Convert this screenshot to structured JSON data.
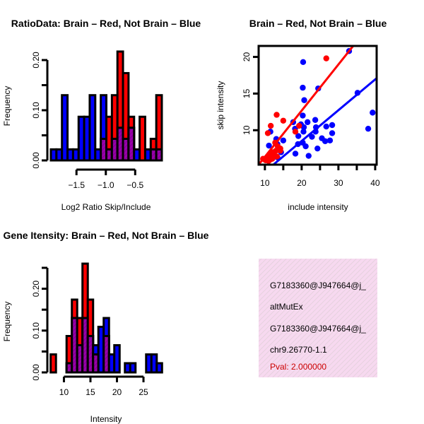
{
  "chart_data": [
    {
      "type": "bar",
      "title": "RatioData: Brain – Red, Not Brain – Blue",
      "xlabel": "Log2 Ratio Skip/Include",
      "ylabel": "Frequency",
      "x_start": -1.936,
      "bin_width": 0.0945,
      "xlim": [
        -1.936,
        -0.046
      ],
      "ylim": [
        0,
        0.22
      ],
      "xticks": [
        -1.5,
        -1.0,
        -0.5
      ],
      "xtick_labels": [
        "−1.5",
        "−1.0",
        "−0.5"
      ],
      "yticks": [
        0,
        0.05,
        0.1,
        0.15,
        0.2
      ],
      "ytick_labels": [
        "0.00",
        "",
        "0.10",
        "",
        "0.20"
      ],
      "series": [
        {
          "name": "Not Brain",
          "color": "#0000ff",
          "values": [
            0.022,
            0.022,
            0.13,
            0.022,
            0.022,
            0.087,
            0.087,
            0.13,
            0.022,
            0.13,
            0.022,
            0.043,
            0.065,
            0.043,
            0.065,
            0.022,
            0,
            0.022,
            0.022,
            0.022
          ]
        },
        {
          "name": "Brain",
          "color": "#ff0000",
          "values": [
            0,
            0,
            0,
            0,
            0,
            0,
            0,
            0,
            0,
            0.043,
            0.087,
            0.13,
            0.217,
            0.174,
            0.087,
            0,
            0.087,
            0,
            0.043,
            0.13
          ]
        }
      ]
    },
    {
      "type": "scatter",
      "title": "Brain – Red, Not Brain – Blue",
      "xlabel": "include intensity",
      "ylabel": "skip intensity",
      "xlim": [
        8.3,
        40.4
      ],
      "ylim": [
        5.3,
        21.5
      ],
      "xticks": [
        10,
        15,
        20,
        25,
        30,
        35,
        40
      ],
      "xtick_labels": [
        "10",
        "",
        "20",
        "",
        "30",
        "",
        "40"
      ],
      "yticks": [
        10,
        15,
        20
      ],
      "ytick_labels": [
        "10",
        "15",
        "20"
      ],
      "series": [
        {
          "name": "Not Brain",
          "color": "#0000ff",
          "points": [
            [
              20.4,
              19.3
            ],
            [
              32.9,
              20.8
            ],
            [
              20.3,
              15.8
            ],
            [
              24.5,
              15.7
            ],
            [
              20.7,
              14.1
            ],
            [
              35.2,
              15.1
            ],
            [
              39.3,
              12.4
            ],
            [
              38.1,
              10.2
            ],
            [
              20.3,
              12.0
            ],
            [
              23.7,
              11.4
            ],
            [
              21.6,
              11.1
            ],
            [
              17.7,
              11.1
            ],
            [
              19.8,
              10.8
            ],
            [
              20.6,
              10.4
            ],
            [
              18.2,
              10.2
            ],
            [
              23.9,
              10.4
            ],
            [
              26.7,
              10.5
            ],
            [
              28.3,
              10.7
            ],
            [
              11.5,
              9.8
            ],
            [
              20.5,
              9.8
            ],
            [
              23.8,
              9.8
            ],
            [
              28.3,
              9.6
            ],
            [
              19.1,
              9.2
            ],
            [
              22.8,
              9.1
            ],
            [
              25.5,
              8.9
            ],
            [
              13.1,
              8.8
            ],
            [
              15.0,
              8.6
            ],
            [
              27.7,
              8.6
            ],
            [
              26.4,
              8.5
            ],
            [
              20.3,
              8.3
            ],
            [
              11.1,
              7.9
            ],
            [
              19.0,
              8.1
            ],
            [
              21.1,
              7.8
            ],
            [
              24.3,
              7.5
            ],
            [
              13.4,
              8.1
            ],
            [
              14.4,
              7.0
            ],
            [
              18.3,
              6.8
            ],
            [
              21.9,
              6.5
            ],
            [
              13.4,
              6.3
            ]
          ],
          "fit": {
            "slope": 0.42,
            "intercept": 0.13
          }
        },
        {
          "name": "Brain",
          "color": "#ff0000",
          "points": [
            [
              26.7,
              19.8
            ],
            [
              13.2,
              12.1
            ],
            [
              15.0,
              11.3
            ],
            [
              11.6,
              10.6
            ],
            [
              10.8,
              9.6
            ],
            [
              18.3,
              9.8
            ],
            [
              19.3,
              10.6
            ],
            [
              14.2,
              7.5
            ],
            [
              10.0,
              6.0
            ],
            [
              10.5,
              6.2
            ],
            [
              11.0,
              6.4
            ],
            [
              11.5,
              6.0
            ],
            [
              12.0,
              6.5
            ],
            [
              12.5,
              7.0
            ],
            [
              13.0,
              7.2
            ],
            [
              13.5,
              7.8
            ],
            [
              11.0,
              5.8
            ],
            [
              12.0,
              6.1
            ],
            [
              9.5,
              6.1
            ],
            [
              10.2,
              5.9
            ],
            [
              12.8,
              8.3
            ],
            [
              13.3,
              6.4
            ],
            [
              14.2,
              7.2
            ],
            [
              11.8,
              7.0
            ]
          ],
          "fit": {
            "slope": 0.63,
            "intercept": 0.07
          }
        }
      ]
    },
    {
      "type": "bar",
      "title": "Gene Itensity: Brain – Red, Not Brain – Blue",
      "xlabel": "Intensity",
      "ylabel": "Frequency",
      "x_start": 7.5,
      "bin_width": 1,
      "xlim": [
        7.5,
        28.5
      ],
      "ylim": [
        0,
        0.26
      ],
      "xticks": [
        10,
        15,
        20,
        25
      ],
      "xtick_labels": [
        "10",
        "15",
        "20",
        "25"
      ],
      "yticks": [
        0,
        0.05,
        0.1,
        0.15,
        0.2,
        0.25
      ],
      "ytick_labels": [
        "0.00",
        "",
        "0.10",
        "",
        "0.20",
        ""
      ],
      "series": [
        {
          "name": "Not Brain",
          "color": "#0000ff",
          "values": [
            0,
            0,
            0,
            0.022,
            0.13,
            0.065,
            0.13,
            0.087,
            0.065,
            0.109,
            0.13,
            0.043,
            0.065,
            0,
            0.022,
            0.022,
            0,
            0,
            0.043,
            0.043,
            0.022
          ]
        },
        {
          "name": "Brain",
          "color": "#ff0000",
          "values": [
            0.043,
            0,
            0,
            0.087,
            0.174,
            0.13,
            0.26,
            0.174,
            0.043,
            0,
            0.087,
            0,
            0,
            0,
            0,
            0,
            0,
            0,
            0,
            0,
            0
          ]
        }
      ]
    }
  ],
  "info_panel": {
    "lines": [
      "G7183360@J947664@j_",
      "altMutEx",
      "G7183360@J947664@j_",
      "chr9.26770-1.1"
    ],
    "pval": "Pval: 2.000000",
    "pval_color": "#cc0000",
    "background": "#f7d9f0"
  },
  "overlap_color": "#9900aa"
}
